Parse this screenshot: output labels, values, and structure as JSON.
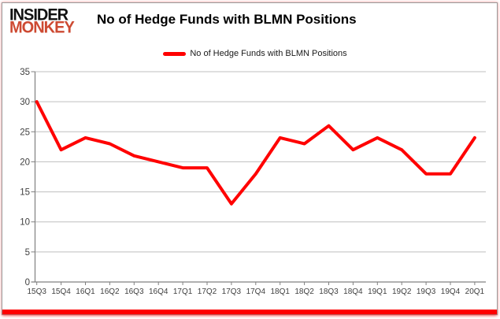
{
  "logo": {
    "line1": "INSIDER",
    "line2": "MONKEY"
  },
  "header": {
    "title": "No of Hedge Funds with BLMN Positions"
  },
  "legend": {
    "label": "No of Hedge Funds with BLMN Positions",
    "swatch_color": "#ff0000"
  },
  "chart_data": {
    "type": "line",
    "title": "No of Hedge Funds with BLMN Positions",
    "categories": [
      "15Q3",
      "15Q4",
      "16Q1",
      "16Q2",
      "16Q3",
      "16Q4",
      "17Q1",
      "17Q2",
      "17Q3",
      "17Q4",
      "18Q1",
      "18Q2",
      "18Q3",
      "18Q4",
      "19Q1",
      "19Q2",
      "19Q3",
      "19Q4",
      "20Q1"
    ],
    "series": [
      {
        "name": "No of Hedge Funds with BLMN Positions",
        "color": "#ff0000",
        "values": [
          30,
          22,
          24,
          23,
          21,
          20,
          19,
          19,
          13,
          18,
          24,
          23,
          26,
          22,
          24,
          22,
          18,
          18,
          24
        ]
      }
    ],
    "xlabel": "",
    "ylabel": "",
    "ylim": [
      0,
      35
    ],
    "ytick_interval": 5,
    "grid": true,
    "legend_position": "top-center"
  },
  "colors": {
    "line": "#ff0000",
    "gridline": "#bfbfbf",
    "axis": "#808080",
    "tick_label": "#3f3f3f",
    "logo_black": "#111111",
    "logo_red": "#cd4a32",
    "bottom_bar": "#fe0000"
  }
}
